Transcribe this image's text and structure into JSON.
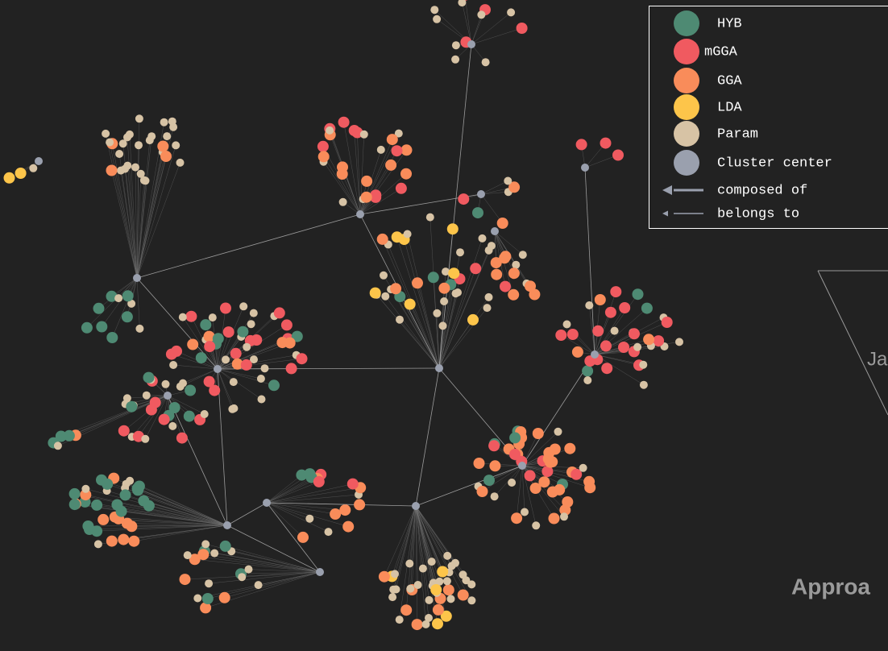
{
  "legend": {
    "items": [
      {
        "label": "HYB",
        "color": "#4e8a73"
      },
      {
        "label": "mGGA",
        "color": "#f05a60"
      },
      {
        "label": "GGA",
        "color": "#f98c5a"
      },
      {
        "label": "LDA",
        "color": "#fdc54a"
      },
      {
        "label": "Param",
        "color": "#d7c3a5"
      },
      {
        "label": "Cluster center",
        "color": "#9aa0ae"
      }
    ],
    "edges": [
      {
        "label": "composed of"
      },
      {
        "label": "belongs to"
      }
    ]
  },
  "side_labels": [
    "Ja",
    "Approa"
  ]
}
